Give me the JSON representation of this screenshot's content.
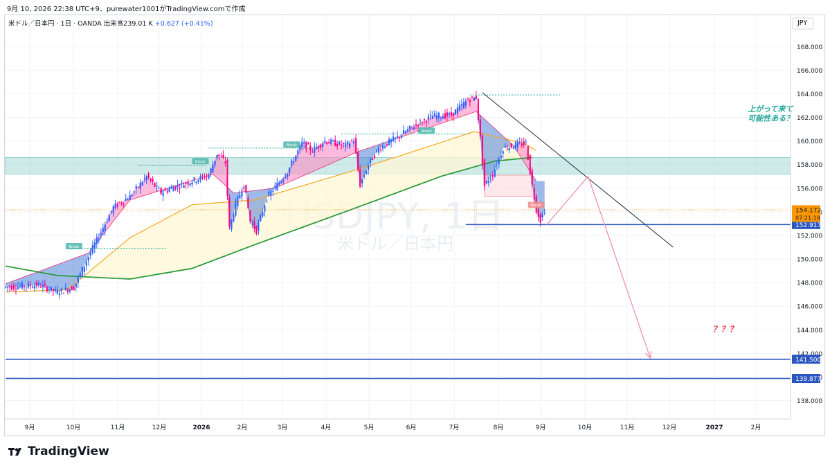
{
  "header": {
    "caption": "9月 10, 2026 22:38 UTC+9、purewater1001がTradingView.comで作成"
  },
  "legend": {
    "symbol_line": "米ドル／日本円 · 1日 · OANDA",
    "volume_label": "出来高",
    "volume_value": "239.01 K",
    "change_value": "+0.627 (+0.41%)"
  },
  "watermark": {
    "symbol": "USDJPY, 1日",
    "name": "米ドル／日本円"
  },
  "brand": {
    "name": "TradingView"
  },
  "colors": {
    "up_candle": "#2962ff",
    "down_candle": "#ff0080",
    "ema_fast_band": "#ff80bf",
    "ema_down_band": "#4a7fd8",
    "ma_orange": "#f5a623",
    "ma_green": "#2e9b3c",
    "zone_teal": "#26a69a",
    "level_line": "#2b55c0",
    "price_tag": "#ff9800"
  },
  "chart_data": {
    "type": "candlestick",
    "symbol": "USDJPY",
    "timeframe": "1日",
    "currency": "JPY",
    "ylim": [
      136.8,
      169.6
    ],
    "y_ticks": [
      138,
      140,
      142,
      144,
      146,
      148,
      150,
      152,
      154,
      156,
      158,
      160,
      162,
      164,
      166,
      168
    ],
    "x_ticks": [
      "9月",
      "10月",
      "11月",
      "12月",
      "2026",
      "2月",
      "3月",
      "4月",
      "5月",
      "6月",
      "7月",
      "8月",
      "9月",
      "10月",
      "11月",
      "12月",
      "2027",
      "2月"
    ],
    "bold_x_ticks": [
      "2026",
      "2027"
    ],
    "path_keypoints": [
      {
        "i": 0,
        "v": 147.6
      },
      {
        "i": 16,
        "v": 147.8
      },
      {
        "i": 25,
        "v": 147.2
      },
      {
        "i": 33,
        "v": 147.6
      },
      {
        "i": 40,
        "v": 150.2
      },
      {
        "i": 52,
        "v": 154.4
      },
      {
        "i": 60,
        "v": 155.3
      },
      {
        "i": 68,
        "v": 157.0
      },
      {
        "i": 75,
        "v": 155.6
      },
      {
        "i": 80,
        "v": 156.0
      },
      {
        "i": 88,
        "v": 156.5
      },
      {
        "i": 98,
        "v": 157.1
      },
      {
        "i": 102,
        "v": 158.9
      },
      {
        "i": 106,
        "v": 158.2
      },
      {
        "i": 108,
        "v": 152.6
      },
      {
        "i": 111,
        "v": 154.6
      },
      {
        "i": 115,
        "v": 156.4
      },
      {
        "i": 118,
        "v": 153.2
      },
      {
        "i": 121,
        "v": 152.4
      },
      {
        "i": 126,
        "v": 155.2
      },
      {
        "i": 136,
        "v": 157.4
      },
      {
        "i": 143,
        "v": 159.8
      },
      {
        "i": 148,
        "v": 159.2
      },
      {
        "i": 154,
        "v": 160.0
      },
      {
        "i": 164,
        "v": 159.6
      },
      {
        "i": 168,
        "v": 160.1
      },
      {
        "i": 171,
        "v": 156.3
      },
      {
        "i": 175,
        "v": 158.0
      },
      {
        "i": 180,
        "v": 159.4
      },
      {
        "i": 188,
        "v": 160.2
      },
      {
        "i": 198,
        "v": 161.4
      },
      {
        "i": 206,
        "v": 162.1
      },
      {
        "i": 215,
        "v": 162.2
      },
      {
        "i": 223,
        "v": 163.5
      },
      {
        "i": 227,
        "v": 163.7
      },
      {
        "i": 229,
        "v": 160.2
      },
      {
        "i": 231,
        "v": 156.2
      },
      {
        "i": 235,
        "v": 157.2
      },
      {
        "i": 240,
        "v": 159.4
      },
      {
        "i": 245,
        "v": 159.6
      },
      {
        "i": 251,
        "v": 159.8
      },
      {
        "i": 254,
        "v": 156.2
      },
      {
        "i": 256,
        "v": 154.2
      },
      {
        "i": 258,
        "v": 153.3
      },
      {
        "i": 260,
        "v": 154.17
      }
    ],
    "moving_averages": [
      {
        "role": "fast",
        "color": "#ff80bf",
        "points": [
          {
            "i": 0,
            "v": 147.9
          },
          {
            "i": 40,
            "v": 150.5
          },
          {
            "i": 60,
            "v": 155.0
          },
          {
            "i": 100,
            "v": 157.2
          },
          {
            "i": 110,
            "v": 155.6
          },
          {
            "i": 130,
            "v": 156.0
          },
          {
            "i": 170,
            "v": 159.1
          },
          {
            "i": 227,
            "v": 162.5
          },
          {
            "i": 245,
            "v": 159.6
          },
          {
            "i": 256,
            "v": 156.6
          }
        ]
      },
      {
        "role": "orange",
        "color": "#f5a623",
        "points": [
          {
            "i": 0,
            "v": 147.2
          },
          {
            "i": 30,
            "v": 147.4
          },
          {
            "i": 60,
            "v": 151.8
          },
          {
            "i": 90,
            "v": 154.6
          },
          {
            "i": 120,
            "v": 155.0
          },
          {
            "i": 170,
            "v": 157.6
          },
          {
            "i": 200,
            "v": 159.3
          },
          {
            "i": 226,
            "v": 160.8
          },
          {
            "i": 250,
            "v": 159.8
          },
          {
            "i": 256,
            "v": 159.2
          }
        ]
      },
      {
        "role": "green",
        "color": "#2e9b3c",
        "points": [
          {
            "i": 0,
            "v": 149.4
          },
          {
            "i": 25,
            "v": 148.6
          },
          {
            "i": 60,
            "v": 148.3
          },
          {
            "i": 90,
            "v": 149.2
          },
          {
            "i": 120,
            "v": 151.2
          },
          {
            "i": 170,
            "v": 154.4
          },
          {
            "i": 210,
            "v": 157.0
          },
          {
            "i": 236,
            "v": 158.3
          },
          {
            "i": 254,
            "v": 158.6
          }
        ]
      }
    ],
    "zone": {
      "from": 157.2,
      "to": 158.6,
      "color": "#26a69a"
    },
    "supply_box": {
      "i_from": 231,
      "i_to": 254,
      "from": 155.3,
      "to": 157.1
    },
    "horizontal_levels": [
      {
        "value": 152.917,
        "label": "152.917",
        "start_i": 222
      },
      {
        "value": 141.5,
        "label": "141.500",
        "start_i": 0
      },
      {
        "value": 139.877,
        "label": "139.877",
        "start_i": 0
      }
    ],
    "current_price": {
      "value": 154.172,
      "label": "154.172",
      "countdown": "07:21:19"
    },
    "resistance_lines": [
      {
        "i": 30,
        "v": 150.9,
        "i2": 78,
        "v2": 150.9,
        "label": "Break"
      },
      {
        "i": 64,
        "v": 157.9,
        "i2": 97,
        "v2": 157.9,
        "label": "Break"
      },
      {
        "i": 98,
        "v": 159.4,
        "i2": 152,
        "v2": 159.4,
        "label": ""
      },
      {
        "i": 162,
        "v": 160.6,
        "i2": 224,
        "v2": 160.6,
        "label": "Break"
      },
      {
        "i": 224,
        "v": 163.9,
        "i2": 268,
        "v2": 163.9,
        "label": ""
      }
    ],
    "break_tags": [
      {
        "i": 33,
        "v": 151.0,
        "label": "Break"
      },
      {
        "i": 94,
        "v": 158.2,
        "label": "Break"
      },
      {
        "i": 138,
        "v": 159.6,
        "label": "Break"
      },
      {
        "i": 203,
        "v": 160.8,
        "label": "Break"
      },
      {
        "i": 256,
        "v": 154.5,
        "label": "Break",
        "tone": "bear"
      }
    ],
    "trendline": {
      "i": 230,
      "v": 164.1,
      "i2": 322,
      "v2": 151.0
    },
    "projection": [
      {
        "i": 261,
        "v": 152.9
      },
      {
        "i": 281,
        "v": 157.0
      },
      {
        "i": 311,
        "v": 141.6
      }
    ],
    "annotations": [
      {
        "text": "上がって来て",
        "color": "#26a69a",
        "i": 358,
        "v": 162.5
      },
      {
        "text": "可能性ある？",
        "color": "#26a69a",
        "i": 358,
        "v": 161.7
      },
      {
        "text": "？？？",
        "color": "#f23645",
        "i": 341,
        "v": 143.8
      }
    ]
  }
}
